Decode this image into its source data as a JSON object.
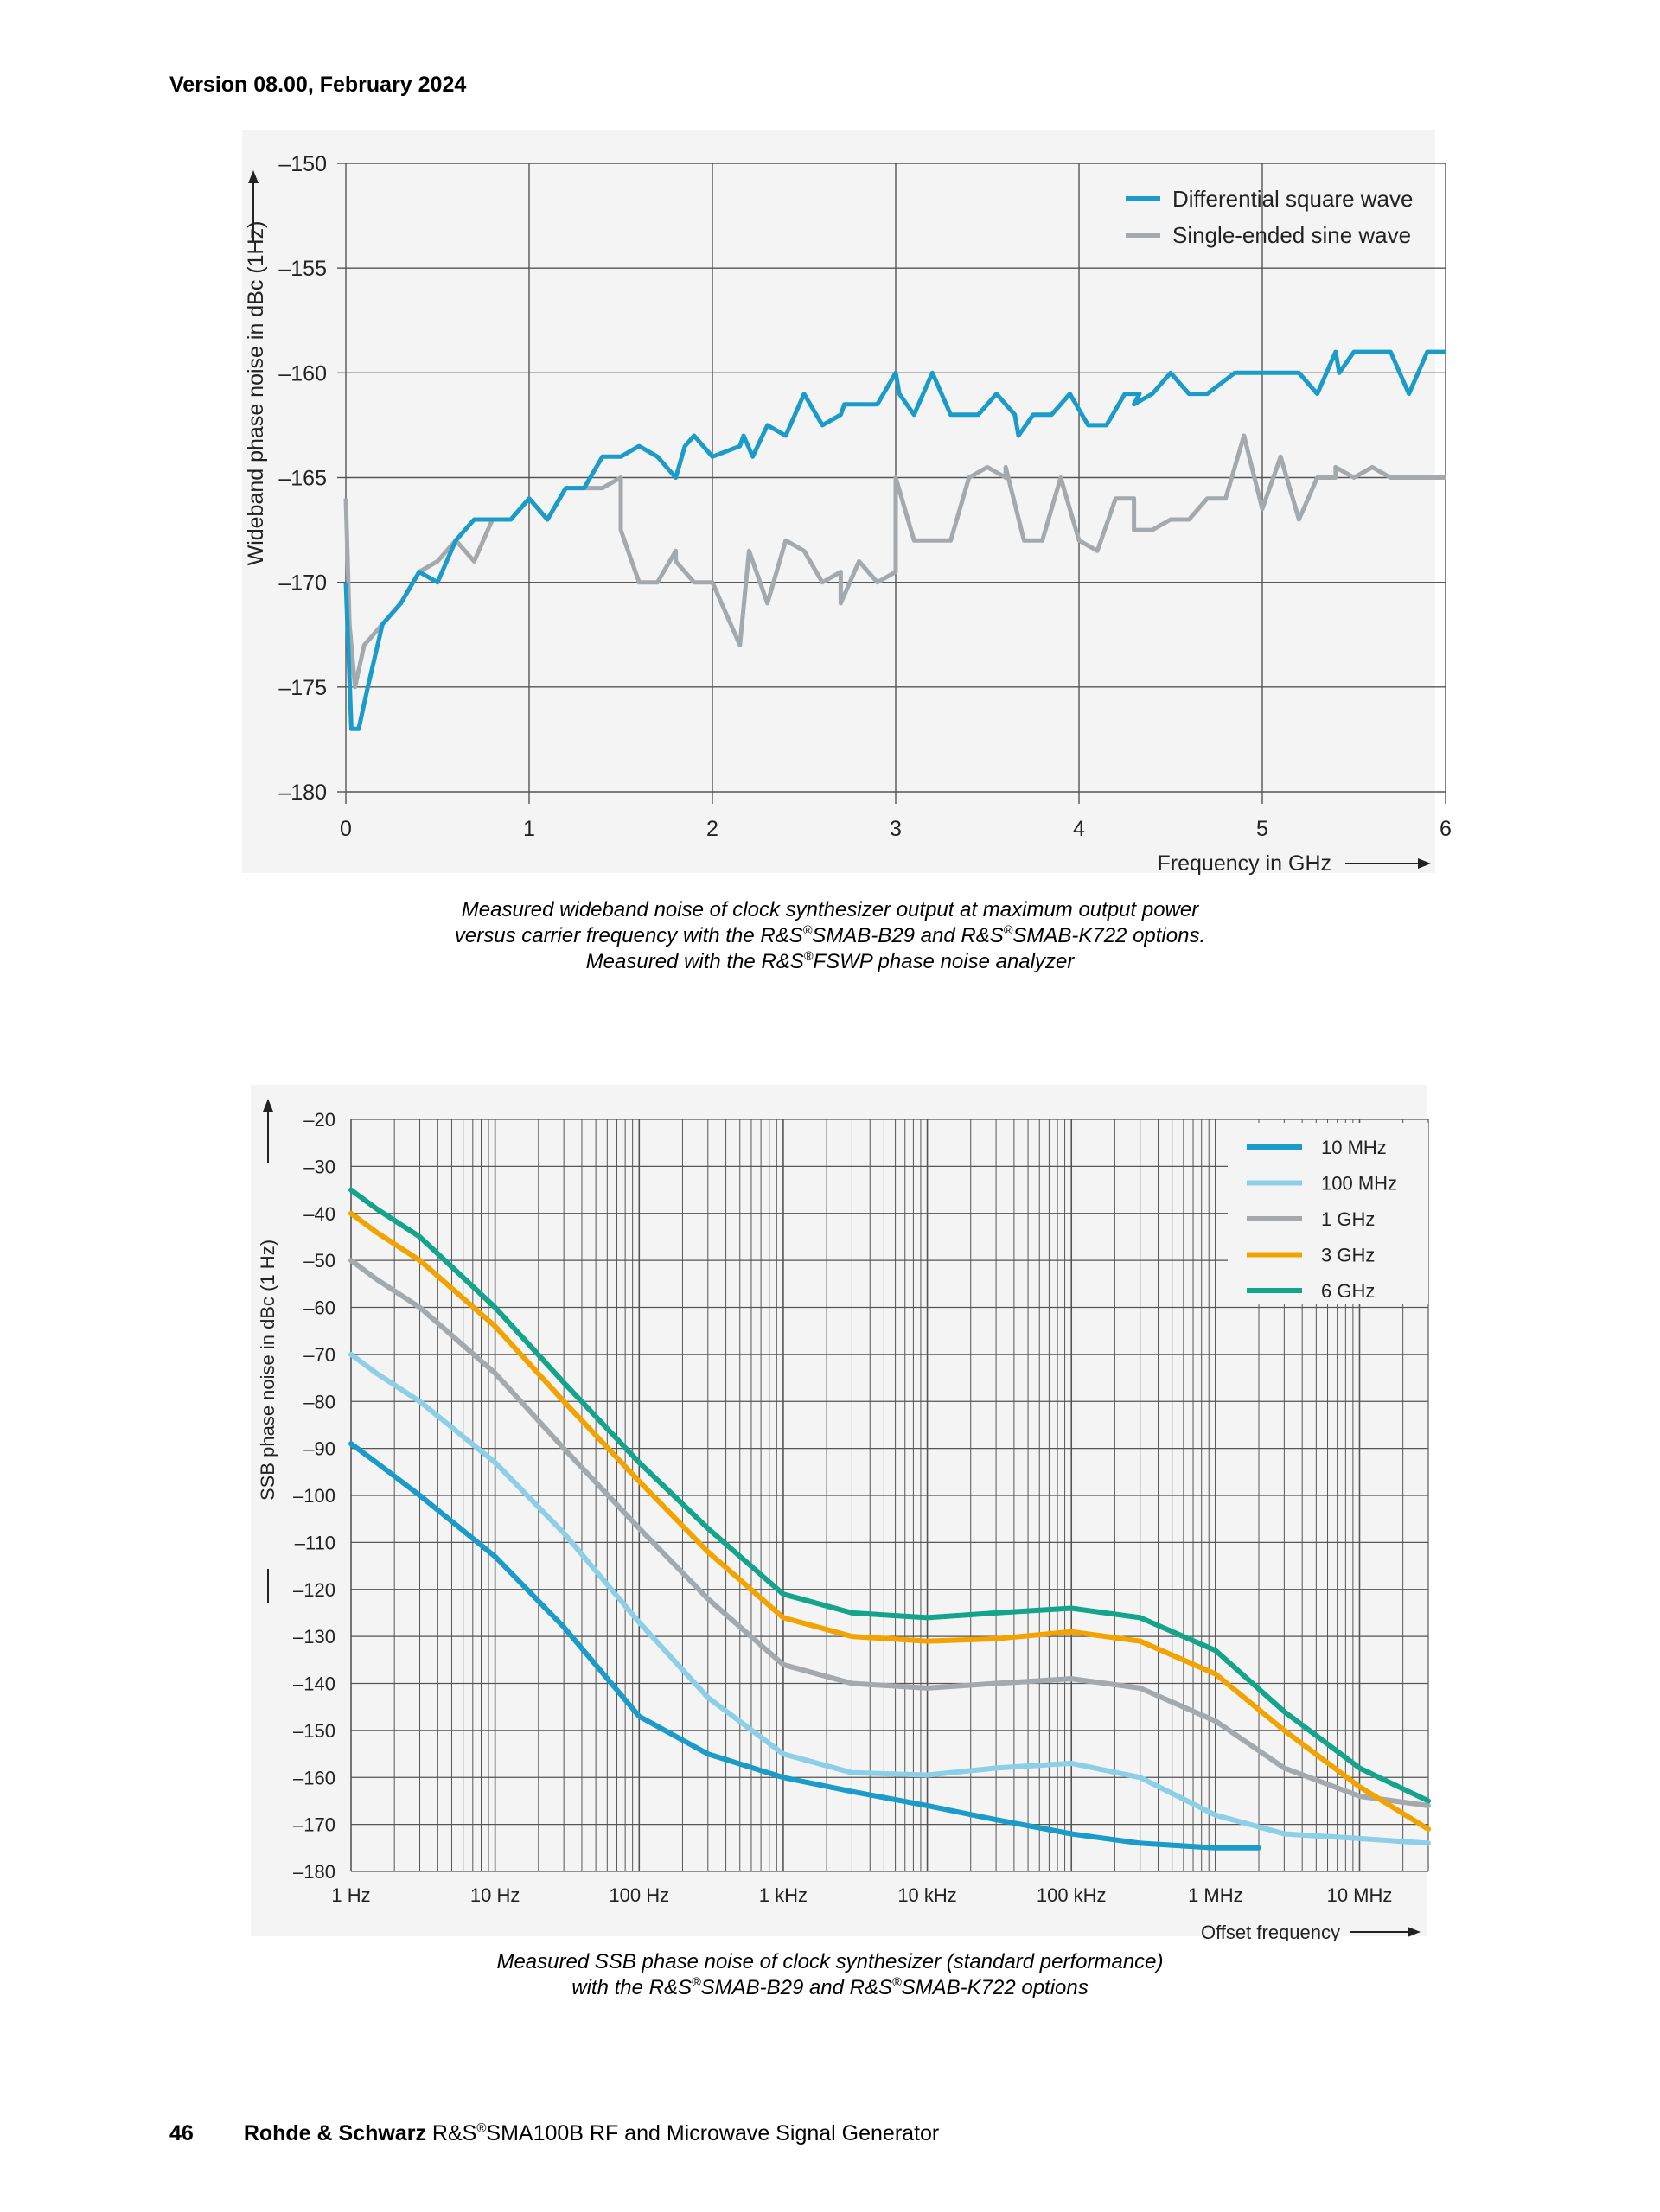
{
  "header": {
    "version": "Version 08.00, February 2024"
  },
  "captions": {
    "chart1": {
      "line1": "Measured wideband noise of clock synthesizer output at maximum output power",
      "line2a": "versus carrier frequency with the R&S",
      "line2b": "SMAB-B29 and R&S",
      "line2c": "SMAB-K722 options.",
      "line3a": "Measured with the R&S",
      "line3b": "FSWP phase noise analyzer",
      "reg": "®"
    },
    "chart2": {
      "line1": "Measured SSB phase noise of clock synthesizer (standard performance)",
      "line2a": "with the R&S",
      "line2b": "SMAB-B29 and R&S",
      "line2c": "SMAB-K722 options",
      "reg": "®"
    }
  },
  "footer": {
    "page_number": "46",
    "brand": "Rohde & Schwarz",
    "product_a": " R&S",
    "reg": "®",
    "product_b": "SMA100B RF and Microwave Signal Generator"
  },
  "chart_data": [
    {
      "type": "line",
      "xlabel": "Frequency in GHz",
      "ylabel": "Wideband phase noise in dBc (1Hz)",
      "xlim": [
        0,
        6
      ],
      "ylim": [
        -180,
        -150
      ],
      "xticks": [
        0,
        1,
        2,
        3,
        4,
        5,
        6
      ],
      "xtick_labels": [
        "0",
        "1",
        "2",
        "3",
        "4",
        "5",
        "6"
      ],
      "yticks": [
        -150,
        -155,
        -160,
        -165,
        -170,
        -175,
        -180
      ],
      "ytick_labels": [
        "–150",
        "–155",
        "–160",
        "–165",
        "–170",
        "–175",
        "–180"
      ],
      "grid": true,
      "legend_position": "top-right",
      "series": [
        {
          "name": "Differential square wave",
          "color": "#1a9bc9",
          "points": [
            [
              0,
              -170
            ],
            [
              0.03,
              -177
            ],
            [
              0.07,
              -177
            ],
            [
              0.12,
              -175
            ],
            [
              0.2,
              -172
            ],
            [
              0.3,
              -171
            ],
            [
              0.4,
              -169.5
            ],
            [
              0.5,
              -170
            ],
            [
              0.6,
              -168
            ],
            [
              0.7,
              -167
            ],
            [
              0.8,
              -167
            ],
            [
              0.9,
              -167
            ],
            [
              1.0,
              -166
            ],
            [
              1.1,
              -167
            ],
            [
              1.2,
              -165.5
            ],
            [
              1.3,
              -165.5
            ],
            [
              1.4,
              -164
            ],
            [
              1.5,
              -164
            ],
            [
              1.6,
              -163.5
            ],
            [
              1.7,
              -164
            ],
            [
              1.8,
              -165
            ],
            [
              1.85,
              -163.5
            ],
            [
              1.9,
              -163
            ],
            [
              2.0,
              -164
            ],
            [
              2.15,
              -163.5
            ],
            [
              2.17,
              -163
            ],
            [
              2.22,
              -164
            ],
            [
              2.3,
              -162.5
            ],
            [
              2.4,
              -163
            ],
            [
              2.5,
              -161
            ],
            [
              2.6,
              -162.5
            ],
            [
              2.7,
              -162
            ],
            [
              2.72,
              -161.5
            ],
            [
              2.9,
              -161.5
            ],
            [
              3.0,
              -160
            ],
            [
              3.02,
              -161
            ],
            [
              3.1,
              -162
            ],
            [
              3.2,
              -160
            ],
            [
              3.3,
              -162
            ],
            [
              3.45,
              -162
            ],
            [
              3.55,
              -161
            ],
            [
              3.65,
              -162
            ],
            [
              3.67,
              -163
            ],
            [
              3.75,
              -162
            ],
            [
              3.85,
              -162
            ],
            [
              3.95,
              -161
            ],
            [
              4.05,
              -162.5
            ],
            [
              4.15,
              -162.5
            ],
            [
              4.25,
              -161
            ],
            [
              4.33,
              -161
            ],
            [
              4.3,
              -161.5
            ],
            [
              4.4,
              -161
            ],
            [
              4.5,
              -160
            ],
            [
              4.6,
              -161
            ],
            [
              4.7,
              -161
            ],
            [
              4.85,
              -160
            ],
            [
              5.0,
              -160
            ],
            [
              5.2,
              -160
            ],
            [
              5.3,
              -161
            ],
            [
              5.4,
              -159
            ],
            [
              5.42,
              -160
            ],
            [
              5.5,
              -159
            ],
            [
              5.7,
              -159
            ],
            [
              5.8,
              -161
            ],
            [
              5.9,
              -159
            ],
            [
              6.0,
              -159
            ]
          ]
        },
        {
          "name": "Single-ended sine wave",
          "color": "#a3a9ad",
          "points": [
            [
              0,
              -166
            ],
            [
              0.02,
              -172
            ],
            [
              0.05,
              -175
            ],
            [
              0.1,
              -173
            ],
            [
              0.2,
              -172
            ],
            [
              0.3,
              -171
            ],
            [
              0.4,
              -169.5
            ],
            [
              0.5,
              -169
            ],
            [
              0.6,
              -168
            ],
            [
              0.7,
              -169
            ],
            [
              0.8,
              -167
            ],
            [
              0.9,
              -167
            ],
            [
              1.0,
              -166
            ],
            [
              1.1,
              -167
            ],
            [
              1.2,
              -165.5
            ],
            [
              1.3,
              -165.5
            ],
            [
              1.4,
              -165.5
            ],
            [
              1.5,
              -165
            ],
            [
              1.5,
              -167.5
            ],
            [
              1.6,
              -170
            ],
            [
              1.7,
              -170
            ],
            [
              1.8,
              -168.5
            ],
            [
              1.8,
              -169
            ],
            [
              1.9,
              -170
            ],
            [
              2.0,
              -170
            ],
            [
              2.15,
              -173
            ],
            [
              2.2,
              -168.5
            ],
            [
              2.3,
              -171
            ],
            [
              2.4,
              -168
            ],
            [
              2.5,
              -168.5
            ],
            [
              2.6,
              -170
            ],
            [
              2.7,
              -169.5
            ],
            [
              2.7,
              -171
            ],
            [
              2.8,
              -169
            ],
            [
              2.9,
              -170
            ],
            [
              3.0,
              -169.5
            ],
            [
              3.0,
              -165
            ],
            [
              3.1,
              -168
            ],
            [
              3.3,
              -168
            ],
            [
              3.4,
              -165
            ],
            [
              3.5,
              -164.5
            ],
            [
              3.6,
              -165
            ],
            [
              3.6,
              -164.5
            ],
            [
              3.7,
              -168
            ],
            [
              3.8,
              -168
            ],
            [
              3.9,
              -165
            ],
            [
              4.0,
              -168
            ],
            [
              4.1,
              -168.5
            ],
            [
              4.2,
              -166
            ],
            [
              4.3,
              -166
            ],
            [
              4.3,
              -167.5
            ],
            [
              4.4,
              -167.5
            ],
            [
              4.5,
              -167
            ],
            [
              4.6,
              -167
            ],
            [
              4.7,
              -166
            ],
            [
              4.8,
              -166
            ],
            [
              4.9,
              -163
            ],
            [
              5.0,
              -166.5
            ],
            [
              5.1,
              -164
            ],
            [
              5.2,
              -167
            ],
            [
              5.3,
              -165
            ],
            [
              5.4,
              -165
            ],
            [
              5.4,
              -164.5
            ],
            [
              5.5,
              -165
            ],
            [
              5.6,
              -164.5
            ],
            [
              5.7,
              -165
            ],
            [
              6.0,
              -165
            ]
          ]
        }
      ]
    },
    {
      "type": "line",
      "xlabel": "Offset frequency",
      "ylabel": "SSB phase noise in dBc (1 Hz)",
      "x_scale": "log",
      "xlim": [
        1,
        30000000
      ],
      "ylim": [
        -180,
        -20
      ],
      "xticks": [
        1,
        10,
        100,
        1000,
        10000,
        100000,
        1000000,
        10000000
      ],
      "xtick_labels": [
        "1 Hz",
        "10 Hz",
        "100 Hz",
        "1 kHz",
        "10 kHz",
        "100 kHz",
        "1 MHz",
        "10 MHz"
      ],
      "yticks": [
        -20,
        -30,
        -40,
        -50,
        -60,
        -70,
        -80,
        -90,
        -100,
        -110,
        -120,
        -130,
        -140,
        -150,
        -160,
        -170,
        -180
      ],
      "ytick_labels": [
        "–20",
        "–30",
        "–40",
        "–50",
        "–60",
        "–70",
        "–80",
        "–90",
        "–100",
        "–110",
        "–120",
        "–130",
        "–140",
        "–150",
        "–160",
        "–170",
        "–180"
      ],
      "grid": true,
      "legend_position": "top-right",
      "series": [
        {
          "name": "10 MHz",
          "color": "#1a9bc9",
          "points": [
            [
              1,
              -89
            ],
            [
              1.5,
              -93
            ],
            [
              3,
              -100
            ],
            [
              10,
              -113
            ],
            [
              30,
              -128
            ],
            [
              100,
              -147
            ],
            [
              300,
              -155
            ],
            [
              1000,
              -160
            ],
            [
              3000,
              -163
            ],
            [
              10000,
              -166
            ],
            [
              30000,
              -169
            ],
            [
              100000,
              -172
            ],
            [
              300000,
              -174
            ],
            [
              1000000,
              -175
            ],
            [
              2000000,
              -175
            ]
          ]
        },
        {
          "name": "100 MHz",
          "color": "#8ccfe6",
          "points": [
            [
              1,
              -70
            ],
            [
              1.5,
              -74
            ],
            [
              3,
              -80
            ],
            [
              10,
              -93
            ],
            [
              30,
              -108
            ],
            [
              100,
              -127
            ],
            [
              300,
              -143
            ],
            [
              1000,
              -155
            ],
            [
              3000,
              -159
            ],
            [
              10000,
              -159.5
            ],
            [
              30000,
              -158
            ],
            [
              100000,
              -157
            ],
            [
              300000,
              -160
            ],
            [
              1000000,
              -168
            ],
            [
              3000000,
              -172
            ],
            [
              10000000,
              -173
            ],
            [
              30000000,
              -174
            ]
          ]
        },
        {
          "name": "1 GHz",
          "color": "#a3a9ad",
          "points": [
            [
              1,
              -50
            ],
            [
              1.5,
              -54
            ],
            [
              3,
              -60
            ],
            [
              10,
              -74
            ],
            [
              30,
              -90
            ],
            [
              100,
              -107
            ],
            [
              300,
              -122
            ],
            [
              1000,
              -136
            ],
            [
              3000,
              -140
            ],
            [
              10000,
              -141
            ],
            [
              30000,
              -140
            ],
            [
              100000,
              -139
            ],
            [
              300000,
              -141
            ],
            [
              1000000,
              -148
            ],
            [
              3000000,
              -158
            ],
            [
              10000000,
              -164
            ],
            [
              30000000,
              -166
            ]
          ]
        },
        {
          "name": "3 GHz",
          "color": "#f2a300",
          "points": [
            [
              1,
              -40
            ],
            [
              1.5,
              -44
            ],
            [
              3,
              -50
            ],
            [
              10,
              -64
            ],
            [
              30,
              -80
            ],
            [
              100,
              -97
            ],
            [
              300,
              -112
            ],
            [
              1000,
              -126
            ],
            [
              3000,
              -130
            ],
            [
              10000,
              -131
            ],
            [
              30000,
              -130.5
            ],
            [
              100000,
              -129
            ],
            [
              300000,
              -131
            ],
            [
              1000000,
              -138
            ],
            [
              3000000,
              -150
            ],
            [
              10000000,
              -162
            ],
            [
              30000000,
              -171
            ]
          ]
        },
        {
          "name": "6 GHz",
          "color": "#14a38b",
          "points": [
            [
              1,
              -35
            ],
            [
              1.5,
              -39
            ],
            [
              3,
              -45
            ],
            [
              10,
              -60
            ],
            [
              30,
              -76
            ],
            [
              100,
              -93
            ],
            [
              300,
              -107
            ],
            [
              1000,
              -121
            ],
            [
              3000,
              -125
            ],
            [
              10000,
              -126
            ],
            [
              30000,
              -125
            ],
            [
              100000,
              -124
            ],
            [
              300000,
              -126
            ],
            [
              1000000,
              -133
            ],
            [
              3000000,
              -146
            ],
            [
              10000000,
              -158
            ],
            [
              30000000,
              -165
            ]
          ]
        }
      ]
    }
  ]
}
